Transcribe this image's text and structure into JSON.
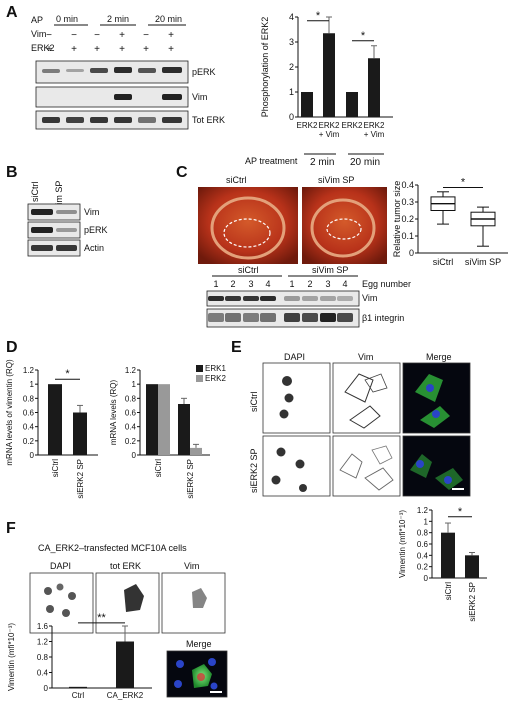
{
  "panels": {
    "A": "A",
    "B": "B",
    "C": "C",
    "D": "D",
    "E": "E",
    "F": "F"
  },
  "panelA": {
    "row_ap": "AP",
    "row_vim": "Vim",
    "row_erk2": "ERK2",
    "times": [
      "0 min",
      "2 min",
      "20 min"
    ],
    "vim_signs": [
      "−",
      "−",
      "−",
      "+",
      "−",
      "+"
    ],
    "erk2_signs": [
      "+",
      "+",
      "+",
      "+",
      "+",
      "+"
    ],
    "blots": [
      "pERK",
      "Vim",
      "Tot ERK"
    ],
    "treatment_label": "AP treatment"
  },
  "panelB": {
    "lanes": [
      "siCtrl",
      "siVim SP"
    ],
    "blots": [
      "Vim",
      "pERK",
      "Actin"
    ]
  },
  "panelC": {
    "images": [
      "siCtrl",
      "siVim SP"
    ],
    "groups": [
      "siCtrl",
      "siVim SP"
    ],
    "egg_numbers": [
      "1",
      "2",
      "3",
      "4",
      "1",
      "2",
      "3",
      "4"
    ],
    "egg_label": "Egg number",
    "blots": [
      "Vim",
      "β1 integrin"
    ]
  },
  "panelE": {
    "columns": [
      "DAPI",
      "Vim",
      "Merge"
    ],
    "rows": [
      "siCtrl",
      "siERK2 SP"
    ]
  },
  "panelF": {
    "title": "CA_ERK2–transfected MCF10A cells",
    "columns": [
      "DAPI",
      "tot ERK",
      "Vim"
    ],
    "merge_label": "Merge"
  },
  "chart_data": [
    {
      "id": "A-phospho",
      "type": "bar",
      "ylabel": "Phosphorylation of ERK2",
      "ylim": [
        0,
        4
      ],
      "yticks": [
        "0",
        "1",
        "2",
        "3",
        "4"
      ],
      "categories": [
        "ERK2",
        "ERK2\n+ Vim",
        "ERK2",
        "ERK2\n+ Vim"
      ],
      "values": [
        1.0,
        3.35,
        1.0,
        2.35
      ],
      "errors": [
        0,
        0.65,
        0,
        0.5
      ],
      "groups": [
        "2 min",
        "20 min"
      ],
      "significance": [
        "*",
        "*"
      ]
    },
    {
      "id": "C-tumor",
      "type": "boxplot",
      "ylabel": "Relative tumor size",
      "ylim": [
        0,
        0.4
      ],
      "yticks": [
        "0",
        "0.1",
        "0.2",
        "0.3",
        "0.4"
      ],
      "categories": [
        "siCtrl",
        "siVim SP"
      ],
      "boxes": [
        {
          "min": 0.17,
          "q1": 0.25,
          "median": 0.29,
          "q3": 0.33,
          "max": 0.36
        },
        {
          "min": 0.04,
          "q1": 0.16,
          "median": 0.2,
          "q3": 0.24,
          "max": 0.27
        }
      ],
      "significance": "*"
    },
    {
      "id": "D-vim",
      "type": "bar",
      "ylabel": "mRNA levels of vimentin (RQ)",
      "ylim": [
        0,
        1.2
      ],
      "yticks": [
        "0",
        "0.2",
        "0.4",
        "0.6",
        "0.8",
        "1",
        "1.2"
      ],
      "categories": [
        "siCtrl",
        "siERK2 SP"
      ],
      "values": [
        1.0,
        0.6
      ],
      "errors": [
        0,
        0.1
      ],
      "significance": "*"
    },
    {
      "id": "D-erk",
      "type": "bar",
      "ylabel": "mRNA levels (RQ)",
      "ylim": [
        0,
        1.2
      ],
      "yticks": [
        "0",
        "0.2",
        "0.4",
        "0.6",
        "0.8",
        "1",
        "1.2"
      ],
      "categories": [
        "siCtrl",
        "siERK2 SP"
      ],
      "series": [
        {
          "name": "ERK1",
          "color": "#1a1a1a",
          "values": [
            1.0,
            0.72
          ],
          "errors": [
            0,
            0.08
          ]
        },
        {
          "name": "ERK2",
          "color": "#999999",
          "values": [
            1.0,
            0.1
          ],
          "errors": [
            0,
            0.05
          ]
        }
      ],
      "legend": "top-right"
    },
    {
      "id": "E-vimentin",
      "type": "bar",
      "ylabel": "Vimentin (mfi*10⁻³)",
      "ylim": [
        0,
        1.2
      ],
      "yticks": [
        "0",
        "0.2",
        "0.4",
        "0.6",
        "0.8",
        "1",
        "1.2"
      ],
      "categories": [
        "siCtrl",
        "siERK2 SP"
      ],
      "values": [
        0.8,
        0.4
      ],
      "errors": [
        0.17,
        0.05
      ],
      "significance": "*"
    },
    {
      "id": "F-vimentin",
      "type": "bar",
      "ylabel": "Vimentin (mfi*10⁻³)",
      "ylim": [
        0,
        1.6
      ],
      "yticks": [
        "0",
        "0.4",
        "0.8",
        "1.2",
        "1.6"
      ],
      "categories": [
        "Ctrl",
        "CA_ERK2"
      ],
      "values": [
        0.03,
        1.2
      ],
      "errors": [
        0,
        0.4
      ],
      "significance": "**"
    }
  ]
}
